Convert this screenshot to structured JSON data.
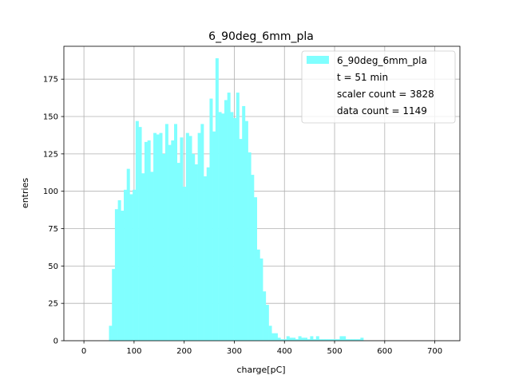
{
  "chart_data": {
    "type": "bar",
    "title": "6_90deg_6mm_pla",
    "xlabel": "charge[pC]",
    "ylabel": "entries",
    "xlim": [
      -40,
      750
    ],
    "ylim": [
      0,
      197
    ],
    "grid": true,
    "bar_color": "#80ffff",
    "bin_start": 50,
    "bin_width": 5.9,
    "values": [
      10,
      48,
      88,
      94,
      87,
      101,
      115,
      98,
      101,
      147,
      143,
      112,
      133,
      134,
      113,
      139,
      138,
      139,
      125,
      145,
      131,
      134,
      145,
      119,
      136,
      103,
      139,
      137,
      125,
      118,
      139,
      145,
      110,
      116,
      162,
      140,
      189,
      153,
      152,
      161,
      166,
      153,
      149,
      166,
      135,
      157,
      147,
      126,
      111,
      96,
      61,
      55,
      33,
      24,
      10,
      5,
      5,
      2,
      1,
      1,
      3,
      2,
      2,
      1,
      3,
      2,
      2,
      1,
      3,
      1,
      3,
      1,
      1,
      1,
      1,
      1,
      1,
      1,
      3,
      3,
      1,
      1,
      1,
      1,
      1,
      2
    ],
    "x_ticks": [
      0,
      100,
      200,
      300,
      400,
      500,
      600,
      700
    ],
    "y_ticks": [
      0,
      25,
      50,
      75,
      100,
      125,
      150,
      175
    ],
    "legend": {
      "position": "top-right",
      "entries": [
        "6_90deg_6mm_pla",
        "t = 51 min",
        "scaler count = 3828",
        "data count = 1149"
      ]
    }
  }
}
